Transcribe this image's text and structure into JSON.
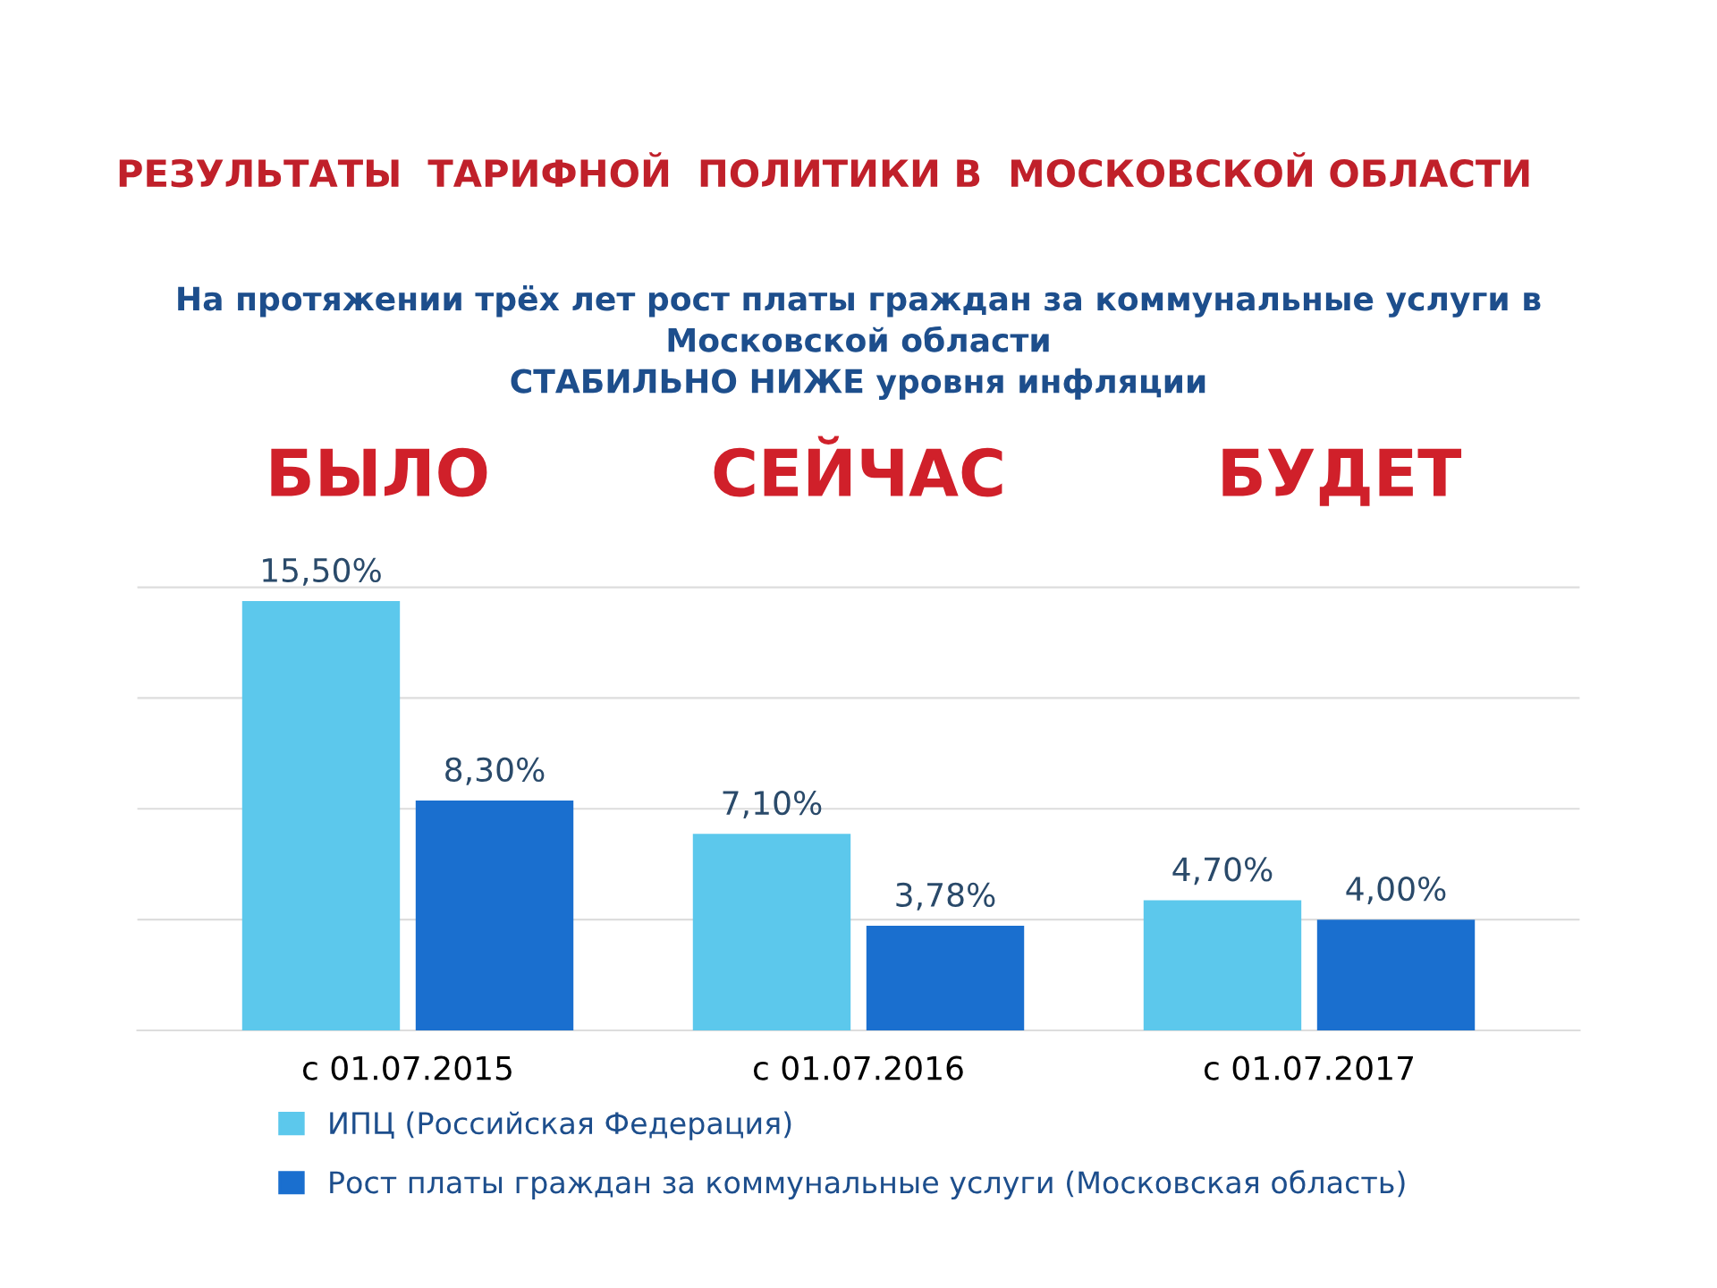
{
  "chart_data": {
    "type": "bar",
    "title": "РЕЗУЛЬТАТЫ  ТАРИФНОЙ  ПОЛИТИКИ В  МОСКОВСКОЙ ОБЛАСТИ",
    "subtitle": "На протяжении трёх лет рост платы граждан за коммунальные услуги в\nМосковской области\nСТАБИЛЬНО НИЖЕ уровня инфляции",
    "categories": [
      "с 01.07.2015",
      "с 01.07.2016",
      "с 01.07.2017"
    ],
    "annotations": [
      "БЫЛО",
      "СЕЙЧАС",
      "БУДЕТ"
    ],
    "series": [
      {
        "name": "ИПЦ (Российская Федерация)",
        "color": "#5cc8ec",
        "values": [
          15.5,
          7.1,
          4.7
        ],
        "value_labels": [
          "15,50%",
          "7,10%",
          "4,70%"
        ]
      },
      {
        "name": "Рост платы граждан за коммунальные услуги (Московская область)",
        "color": "#1a6fcf",
        "values": [
          8.3,
          3.78,
          4.0
        ],
        "value_labels": [
          "8,30%",
          "3,78%",
          "4,00%"
        ]
      }
    ],
    "yticks": [
      {
        "value": 0,
        "label": null
      },
      {
        "value": 4,
        "label": null
      },
      {
        "value": 8,
        "label": null
      },
      {
        "value": 12,
        "label": null
      },
      {
        "value": 16,
        "label": null
      }
    ],
    "grid": "y",
    "tick_labels": "x",
    "legend": "bottom"
  }
}
